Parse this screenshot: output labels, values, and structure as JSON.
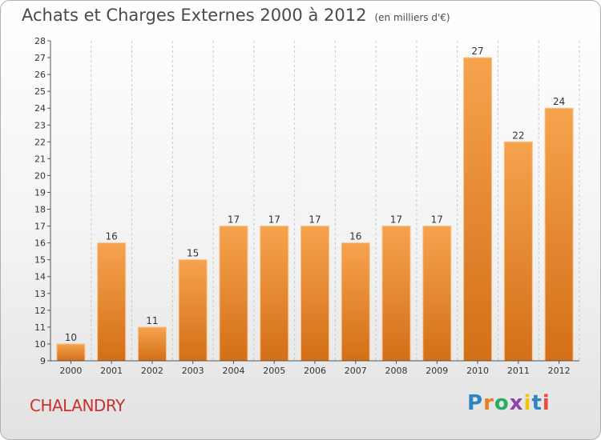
{
  "title": "Achats et Charges Externes 2000 à 2012",
  "unit_note": "(en milliers d'€)",
  "commune": "CHALANDRY",
  "logo": {
    "letters": [
      "P",
      "r",
      "o",
      "x",
      "i",
      "t",
      "i"
    ],
    "colors": [
      "#2e86c1",
      "#e67e22",
      "#27ae60",
      "#8e44ad",
      "#f1c40f",
      "#2e86c1",
      "#e74c3c"
    ]
  },
  "colors": {
    "bar_light": "#f6a34e",
    "bar_dark": "#d36f17",
    "commune": "#c8322d"
  },
  "chart_data": {
    "type": "bar",
    "categories": [
      "2000",
      "2001",
      "2002",
      "2003",
      "2004",
      "2005",
      "2006",
      "2007",
      "2008",
      "2009",
      "2010",
      "2011",
      "2012"
    ],
    "values": [
      10,
      16,
      11,
      15,
      17,
      17,
      17,
      16,
      17,
      17,
      27,
      22,
      24
    ],
    "ylim": [
      9,
      28
    ],
    "yticks": [
      9,
      10,
      11,
      12,
      13,
      14,
      15,
      16,
      17,
      18,
      19,
      20,
      21,
      22,
      23,
      24,
      25,
      26,
      27,
      28
    ],
    "grid": "vertical",
    "xlabel": "",
    "ylabel": ""
  }
}
